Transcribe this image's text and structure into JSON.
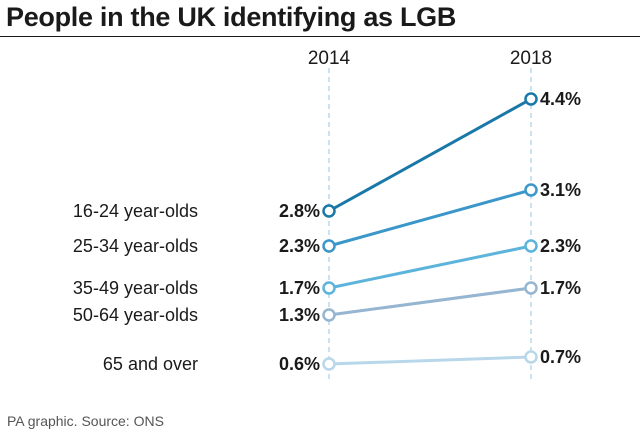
{
  "title": "People in the UK identifying as LGB",
  "source": "PA graphic. Source: ONS",
  "chart_data": {
    "type": "line",
    "title": "People in the UK identifying as LGB",
    "x": [
      "2014",
      "2018"
    ],
    "xlabel": "",
    "ylabel": "",
    "grid": false,
    "series": [
      {
        "name": "16-24 year-olds",
        "values": [
          2.8,
          4.4
        ],
        "labels": [
          "2.8%",
          "4.4%"
        ],
        "color": "#1a78a8"
      },
      {
        "name": "25-34 year-olds",
        "values": [
          2.3,
          3.1
        ],
        "labels": [
          "2.3%",
          "3.1%"
        ],
        "color": "#3b97c9"
      },
      {
        "name": "35-49 year-olds",
        "values": [
          1.7,
          2.3
        ],
        "labels": [
          "1.7%",
          "2.3%"
        ],
        "color": "#5db4db"
      },
      {
        "name": "50-64 year-olds",
        "values": [
          1.3,
          1.7
        ],
        "labels": [
          "1.3%",
          "1.7%"
        ],
        "color": "#95b5d1"
      },
      {
        "name": "65 and over",
        "values": [
          0.6,
          0.7
        ],
        "labels": [
          "0.6%",
          "0.7%"
        ],
        "color": "#b8d7ea"
      }
    ]
  }
}
